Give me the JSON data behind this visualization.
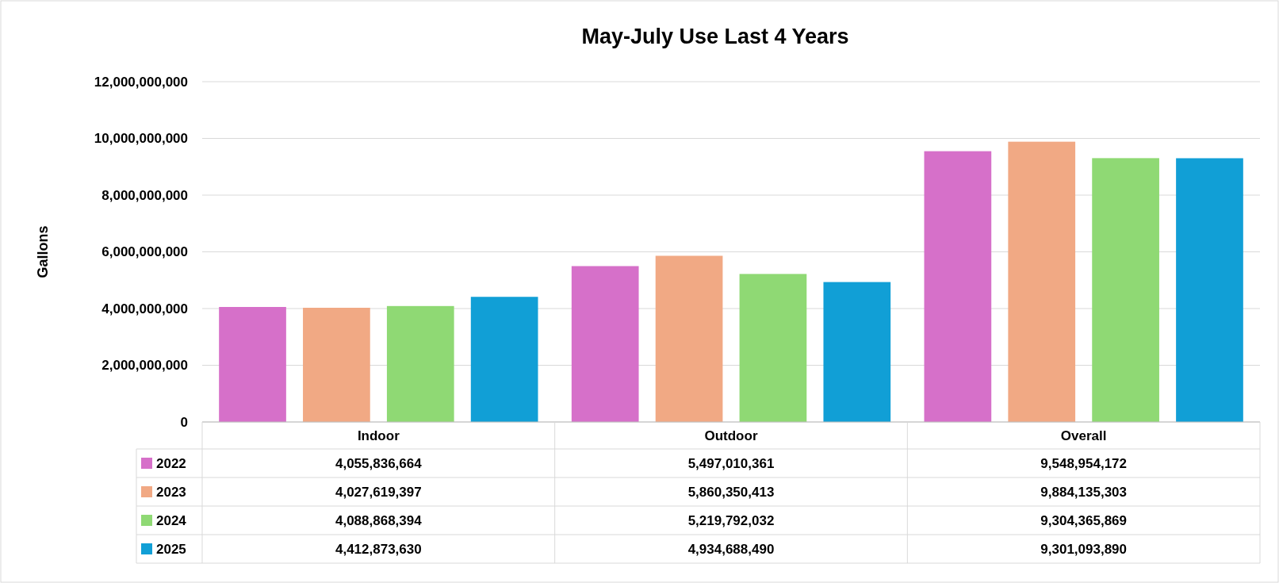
{
  "chart_data": {
    "type": "bar",
    "title": "May-July Use Last 4 Years",
    "ylabel": "Gallons",
    "categories": [
      "Indoor",
      "Outdoor",
      "Overall"
    ],
    "series": [
      {
        "name": "2022",
        "color": "#d670c9",
        "values": [
          4055836664,
          5497010361,
          9548954172
        ],
        "value_labels": [
          "4,055,836,664",
          "5,497,010,361",
          "9,548,954,172"
        ]
      },
      {
        "name": "2023",
        "color": "#f1a984",
        "values": [
          4027619397,
          5860350413,
          9884135303
        ],
        "value_labels": [
          "4,027,619,397",
          "5,860,350,413",
          "9,884,135,303"
        ]
      },
      {
        "name": "2024",
        "color": "#8fd974",
        "values": [
          4088868394,
          5219792032,
          9304365869
        ],
        "value_labels": [
          "4,088,868,394",
          "5,219,792,032",
          "9,304,365,869"
        ]
      },
      {
        "name": "2025",
        "color": "#119fd6",
        "values": [
          4412873630,
          4934688490,
          9301093890
        ],
        "value_labels": [
          "4,412,873,630",
          "4,934,688,490",
          "9,301,093,890"
        ]
      }
    ],
    "ylim": [
      0,
      12000000000
    ],
    "yticks": [
      {
        "value": 0,
        "label": "0"
      },
      {
        "value": 2000000000,
        "label": "2,000,000,000"
      },
      {
        "value": 4000000000,
        "label": "4,000,000,000"
      },
      {
        "value": 6000000000,
        "label": "6,000,000,000"
      },
      {
        "value": 8000000000,
        "label": "8,000,000,000"
      },
      {
        "value": 10000000000,
        "label": "10,000,000,000"
      },
      {
        "value": 12000000000,
        "label": "12,000,000,000"
      }
    ],
    "grid": "y",
    "legend": "bottom"
  }
}
